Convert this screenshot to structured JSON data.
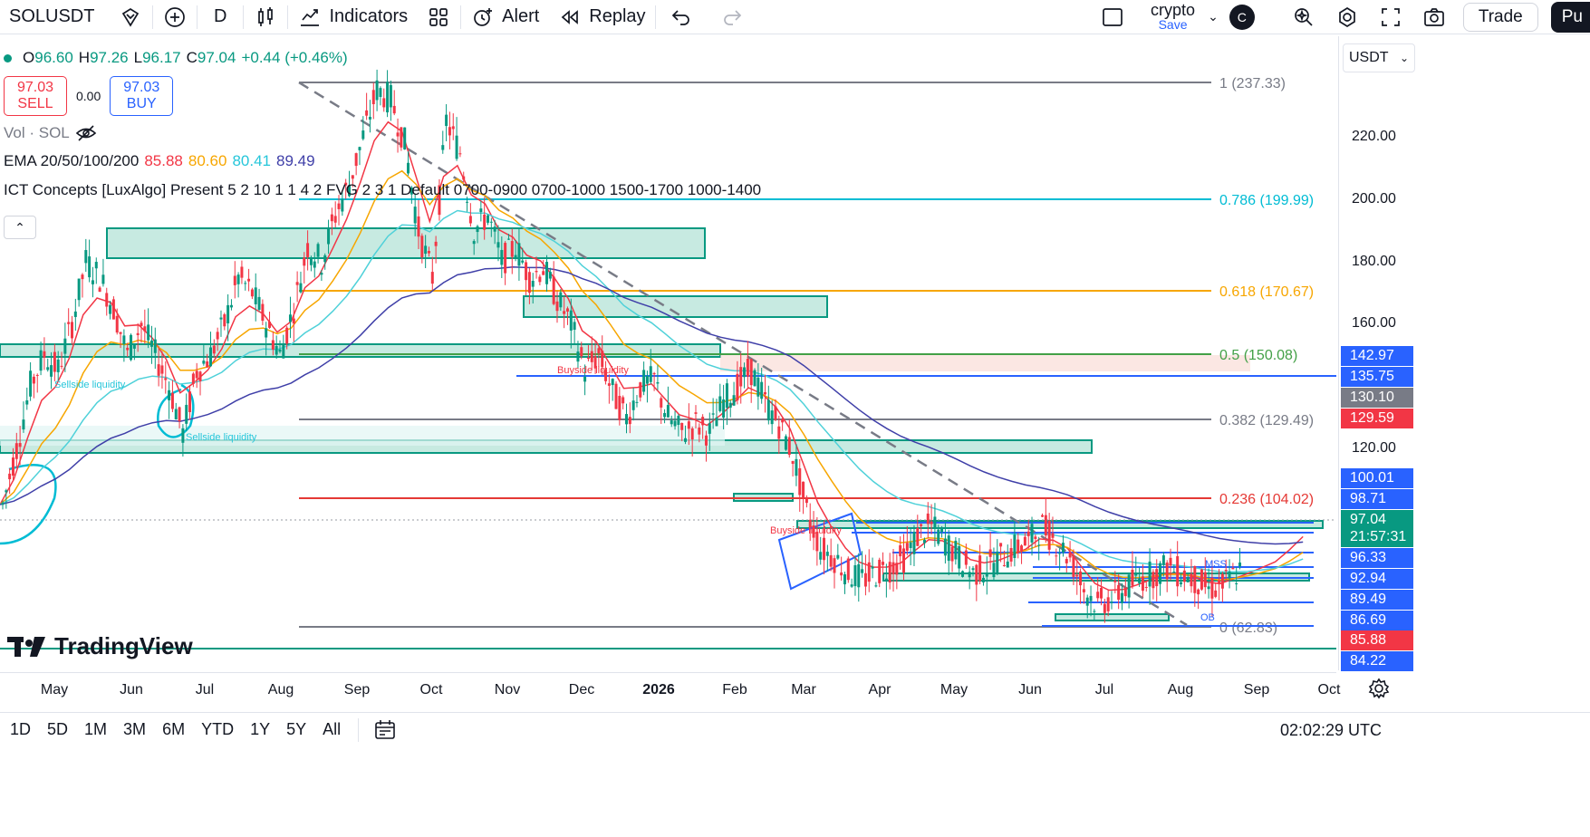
{
  "toolbar": {
    "symbol": "SOLUSDT",
    "interval": "D",
    "indicators_label": "Indicators",
    "alert_label": "Alert",
    "replay_label": "Replay",
    "layout_name": "crypto",
    "save_label": "Save",
    "avatar_initial": "C",
    "trade_label": "Trade",
    "publish_label": "Pu"
  },
  "legend": {
    "open_label": "O",
    "open": "96.60",
    "high_label": "H",
    "high": "97.26",
    "low_label": "L",
    "low": "96.17",
    "close_label": "C",
    "close": "97.04",
    "change": "+0.44 (+0.46%)",
    "sell_price": "97.03",
    "sell_label": "SELL",
    "spread": "0.00",
    "buy_price": "97.03",
    "buy_label": "BUY",
    "volume_label": "Vol · SOL",
    "ema_label": "EMA 20/50/100/200",
    "ema_values": [
      "85.88",
      "80.60",
      "80.41",
      "89.49"
    ],
    "ict_label": "ICT Concepts [LuxAlgo] Present 5 2 10 1 1 4 2 FVG 2 3 1 Default 0700-0900 0700-1000 1500-1700 1000-1400"
  },
  "colors": {
    "up": "#089981",
    "down": "#f23645",
    "ema20": "#f23645",
    "ema50": "#f7a600",
    "ema100": "#4fd1d9",
    "ema200": "#3f3fa8",
    "blue": "#2962ff",
    "fib_gray": "#787b86"
  },
  "chart_data": {
    "type": "candlestick",
    "symbol": "SOLUSDT",
    "interval": "D",
    "price_ticks": [
      "220.00",
      "200.00",
      "180.00",
      "160.00",
      "120.00"
    ],
    "fib_levels": [
      {
        "label": "1 (237.33)",
        "price": 237.33,
        "color": "#787b86"
      },
      {
        "label": "0.786 (199.99)",
        "price": 199.99,
        "color": "#00bcd4"
      },
      {
        "label": "0.618 (170.67)",
        "price": 170.67,
        "color": "#f7a600"
      },
      {
        "label": "0.5 (150.08)",
        "price": 150.08,
        "color": "#43a047"
      },
      {
        "label": "0.382 (129.49)",
        "price": 129.49,
        "color": "#787b86"
      },
      {
        "label": "0.236 (104.02)",
        "price": 104.02,
        "color": "#e53935"
      },
      {
        "label": "0 (62.83)",
        "price": 62.83,
        "color": "#787b86"
      }
    ],
    "price_tags": [
      {
        "value": "142.97",
        "color": "#2962ff"
      },
      {
        "value": "135.75",
        "color": "#2962ff"
      },
      {
        "value": "130.10",
        "color": "#787b86"
      },
      {
        "value": "129.59",
        "color": "#f23645"
      },
      {
        "value": "100.01",
        "color": "#2962ff"
      },
      {
        "value": "98.71",
        "color": "#2962ff"
      },
      {
        "value": "97.04",
        "color": "#089981"
      },
      {
        "value": "21:57:31",
        "color": "#089981"
      },
      {
        "value": "96.33",
        "color": "#2962ff"
      },
      {
        "value": "92.94",
        "color": "#2962ff"
      },
      {
        "value": "89.49",
        "color": "#2962ff"
      },
      {
        "value": "86.69",
        "color": "#2962ff"
      },
      {
        "value": "85.88",
        "color": "#f23645"
      },
      {
        "value": "84.22",
        "color": "#2962ff"
      }
    ],
    "months": [
      "May",
      "Jun",
      "Jul",
      "Aug",
      "Sep",
      "Oct",
      "Nov",
      "Dec",
      "2026",
      "Feb",
      "Mar",
      "Apr",
      "May",
      "Jun",
      "Jul",
      "Aug",
      "Sep",
      "Oct"
    ],
    "annotations": [
      "Sellside liquidity",
      "Sellside liquidity",
      "Buyside liquidity",
      "Buyside liquidity",
      "MSS",
      "OB"
    ],
    "close_path": [
      [
        0,
        102
      ],
      [
        1,
        120
      ],
      [
        2,
        140
      ],
      [
        3,
        150
      ],
      [
        4,
        145
      ],
      [
        5,
        160
      ],
      [
        6,
        180
      ],
      [
        7,
        175
      ],
      [
        8,
        165
      ],
      [
        9,
        150
      ],
      [
        10,
        160
      ],
      [
        11,
        150
      ],
      [
        12,
        140
      ],
      [
        13,
        125
      ],
      [
        14,
        145
      ],
      [
        15,
        150
      ],
      [
        16,
        160
      ],
      [
        17,
        175
      ],
      [
        18,
        170
      ],
      [
        19,
        160
      ],
      [
        20,
        150
      ],
      [
        21,
        165
      ],
      [
        22,
        185
      ],
      [
        23,
        180
      ],
      [
        24,
        195
      ],
      [
        25,
        205
      ],
      [
        26,
        220
      ],
      [
        27,
        235
      ],
      [
        28,
        232
      ],
      [
        29,
        218
      ],
      [
        30,
        190
      ],
      [
        31,
        175
      ],
      [
        32,
        225
      ],
      [
        33,
        215
      ],
      [
        34,
        190
      ],
      [
        35,
        195
      ],
      [
        36,
        180
      ],
      [
        37,
        185
      ],
      [
        38,
        175
      ],
      [
        39,
        178
      ],
      [
        40,
        168
      ],
      [
        41,
        160
      ],
      [
        42,
        145
      ],
      [
        43,
        150
      ],
      [
        44,
        138
      ],
      [
        45,
        130
      ],
      [
        46,
        140
      ],
      [
        47,
        142
      ],
      [
        48,
        130
      ],
      [
        49,
        125
      ],
      [
        50,
        128
      ],
      [
        51,
        125
      ],
      [
        52,
        135
      ],
      [
        53,
        140
      ],
      [
        54,
        145
      ],
      [
        55,
        135
      ],
      [
        56,
        128
      ],
      [
        57,
        118
      ],
      [
        58,
        100
      ],
      [
        59,
        88
      ],
      [
        60,
        85
      ],
      [
        61,
        80
      ],
      [
        62,
        78
      ],
      [
        63,
        80
      ],
      [
        64,
        82
      ],
      [
        65,
        85
      ],
      [
        66,
        92
      ],
      [
        67,
        95
      ],
      [
        68,
        90
      ],
      [
        69,
        85
      ],
      [
        70,
        80
      ],
      [
        71,
        82
      ],
      [
        72,
        85
      ],
      [
        73,
        88
      ],
      [
        74,
        90
      ],
      [
        75,
        95
      ],
      [
        76,
        90
      ],
      [
        77,
        85
      ],
      [
        78,
        75
      ],
      [
        79,
        70
      ],
      [
        80,
        72
      ],
      [
        81,
        75
      ],
      [
        82,
        78
      ],
      [
        83,
        80
      ],
      [
        84,
        82
      ],
      [
        85,
        80
      ],
      [
        86,
        78
      ],
      [
        87,
        75
      ],
      [
        88,
        76
      ],
      [
        89,
        80
      ],
      [
        90,
        82
      ],
      [
        91,
        84
      ],
      [
        92,
        86
      ],
      [
        93,
        92
      ],
      [
        94,
        97
      ]
    ]
  },
  "time_ranges": [
    "1D",
    "5D",
    "1M",
    "3M",
    "6M",
    "YTD",
    "1Y",
    "5Y",
    "All"
  ],
  "currency": "USDT",
  "clock": "02:02:29 UTC",
  "logo_text": "TradingView"
}
